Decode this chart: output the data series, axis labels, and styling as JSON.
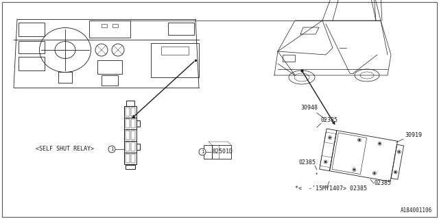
{
  "bg_color": "#ffffff",
  "line_color": "#1a1a1a",
  "text_color": "#1a1a1a",
  "part_number_bottom_right": "A184001106",
  "label_self_shut_relay": "<SELF SHUT RELAY>",
  "label_82501D": "82501D",
  "label_30948": "30948",
  "label_02385_a": "02385",
  "label_30919": "30919",
  "label_02385_b": "02385",
  "label_note": "*<  -'15MY1407> 02385",
  "label_02385_c": "02385",
  "figsize": [
    6.4,
    3.2
  ],
  "dpi": 100
}
